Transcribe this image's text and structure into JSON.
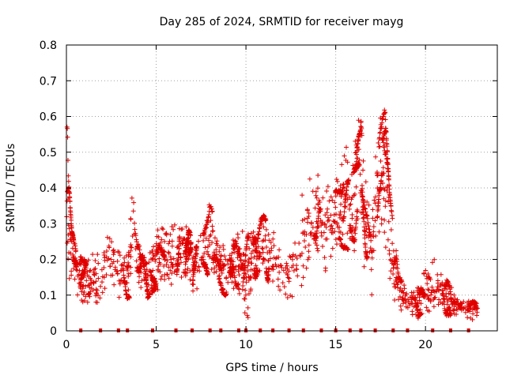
{
  "chart_data": {
    "type": "scatter",
    "title": "Day 285 of 2024, SRMTID for receiver mayg",
    "xlabel": "GPS time / hours",
    "ylabel": "SRMTID / TECUs",
    "xlim": [
      0,
      24
    ],
    "ylim": [
      0,
      0.8
    ],
    "xticks": [
      0,
      5,
      10,
      15,
      20
    ],
    "yticks": [
      0,
      0.1,
      0.2,
      0.3,
      0.4,
      0.5,
      0.6,
      0.7,
      0.8
    ],
    "ytick_labels": [
      "0",
      "0.1",
      "0.2",
      "0.3",
      "0.4",
      "0.5",
      "0.6",
      "0.7",
      "0.8"
    ],
    "grid": true,
    "marker": "+",
    "series_color": "#e00000",
    "envelope": {
      "hours": [
        0.0,
        0.1,
        0.3,
        0.6,
        1.0,
        1.5,
        2.0,
        2.5,
        3.0,
        3.5,
        3.7,
        4.0,
        4.5,
        5.0,
        5.5,
        6.0,
        6.5,
        7.0,
        7.5,
        8.0,
        8.5,
        9.0,
        9.5,
        10.0,
        10.5,
        11.0,
        11.5,
        12.0,
        12.5,
        13.0,
        13.5,
        14.0,
        14.5,
        15.0,
        15.5,
        16.0,
        16.2,
        16.5,
        17.0,
        17.5,
        17.7,
        18.0,
        18.5,
        19.0,
        19.5,
        20.0,
        20.5,
        21.0,
        21.5,
        22.0,
        22.5,
        22.9
      ],
      "center": [
        0.55,
        0.3,
        0.2,
        0.15,
        0.13,
        0.14,
        0.16,
        0.22,
        0.16,
        0.17,
        0.3,
        0.2,
        0.16,
        0.2,
        0.22,
        0.2,
        0.22,
        0.18,
        0.22,
        0.26,
        0.2,
        0.17,
        0.22,
        0.15,
        0.2,
        0.24,
        0.2,
        0.17,
        0.15,
        0.22,
        0.3,
        0.32,
        0.3,
        0.35,
        0.4,
        0.35,
        0.55,
        0.35,
        0.2,
        0.5,
        0.45,
        0.25,
        0.1,
        0.08,
        0.07,
        0.13,
        0.12,
        0.1,
        0.08,
        0.07,
        0.06,
        0.05
      ],
      "spread": [
        0.18,
        0.1,
        0.06,
        0.05,
        0.05,
        0.05,
        0.06,
        0.08,
        0.05,
        0.06,
        0.1,
        0.06,
        0.05,
        0.06,
        0.07,
        0.07,
        0.07,
        0.06,
        0.06,
        0.07,
        0.06,
        0.06,
        0.07,
        0.08,
        0.07,
        0.06,
        0.06,
        0.07,
        0.06,
        0.08,
        0.1,
        0.1,
        0.1,
        0.1,
        0.12,
        0.1,
        0.15,
        0.12,
        0.08,
        0.15,
        0.15,
        0.1,
        0.04,
        0.03,
        0.03,
        0.05,
        0.05,
        0.04,
        0.03,
        0.02,
        0.02,
        0.02
      ]
    },
    "segment_count": 48,
    "points_per_segment": 28,
    "baseline_markers_x": [
      0.8,
      1.9,
      2.9,
      3.4,
      4.8,
      6.1,
      7.0,
      8.0,
      8.6,
      9.6,
      10.0,
      10.8,
      11.5,
      12.4,
      13.2,
      14.2,
      15.0,
      15.8,
      16.4,
      17.2,
      18.2,
      19.0,
      20.4,
      21.4,
      22.4
    ],
    "baseline_marker_value": 0
  }
}
